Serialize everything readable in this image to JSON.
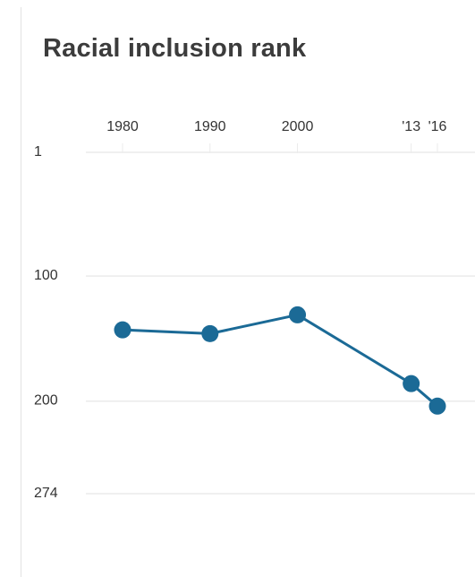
{
  "chart_data": {
    "type": "line",
    "title": "Racial inclusion rank",
    "x": [
      1980,
      1990,
      2000,
      2013,
      2016
    ],
    "x_tick_labels": [
      "1980",
      "1990",
      "2000",
      "'13",
      "'16"
    ],
    "y": [
      143,
      146,
      131,
      186,
      204
    ],
    "y_ticks": [
      1,
      100,
      200,
      274
    ],
    "y_tick_labels": [
      "1",
      "100",
      "200",
      "274"
    ],
    "ylim": [
      1,
      274
    ],
    "y_inverted": true,
    "grid": true,
    "legend": "none",
    "colors": {
      "series": "#1b6a96",
      "grid": "#ebebeb",
      "text": "#333333"
    }
  }
}
